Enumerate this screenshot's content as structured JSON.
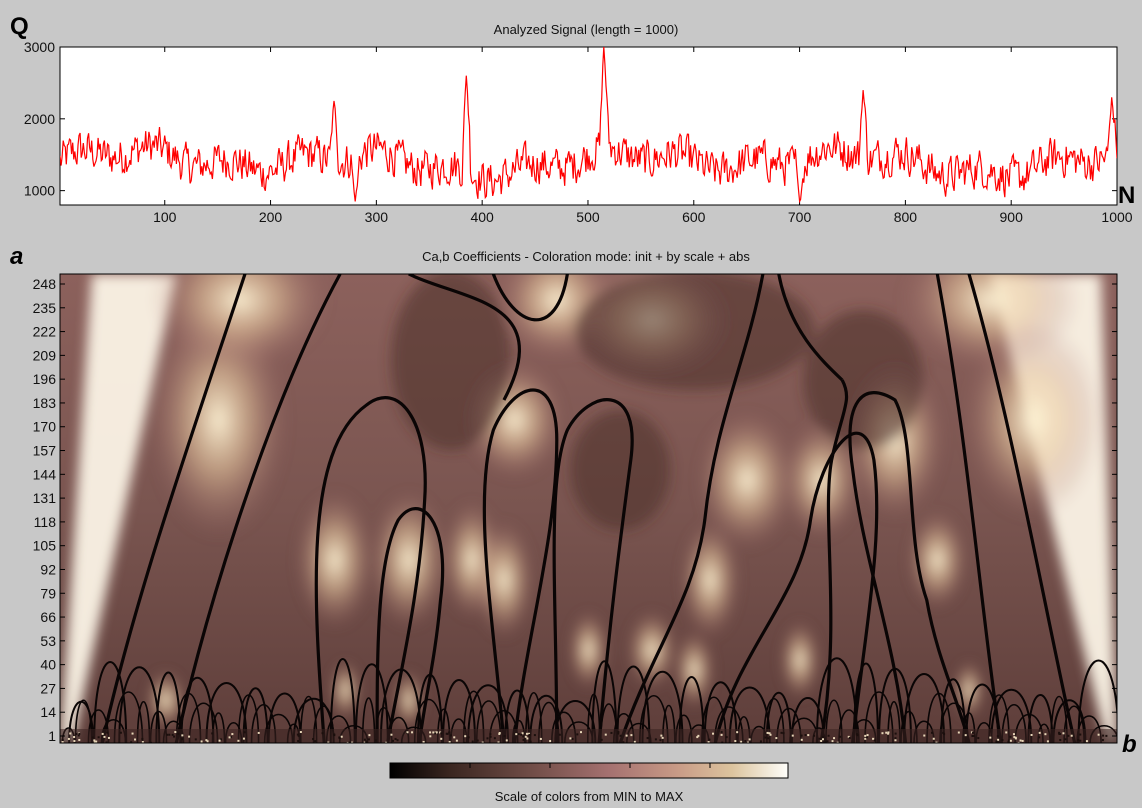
{
  "chart_data": [
    {
      "type": "line",
      "title": "Analyzed Signal  (length = 1000)",
      "ylabel": "Q",
      "xlabel": "N",
      "xlim": [
        1,
        1000
      ],
      "ylim": [
        800,
        3000
      ],
      "x_ticks": [
        100,
        200,
        300,
        400,
        500,
        600,
        700,
        800,
        900,
        1000
      ],
      "y_ticks": [
        1000,
        2000,
        3000
      ],
      "grid": false,
      "series": [
        {
          "color": "#ff0000",
          "length": 1000,
          "baseline": 1400,
          "typical_range": [
            900,
            2100
          ],
          "features": [
            {
              "x": 260,
              "y": 2250
            },
            {
              "x": 280,
              "y": 850
            },
            {
              "x": 385,
              "y": 2600
            },
            {
              "x": 515,
              "y": 3000
            },
            {
              "x": 700,
              "y": 850
            },
            {
              "x": 760,
              "y": 2400
            },
            {
              "x": 995,
              "y": 2300
            }
          ]
        }
      ]
    },
    {
      "type": "heatmap",
      "title": "Ca,b Coefficients - Coloration mode: init + by scale + abs",
      "ylabel": "a",
      "xlabel": "b",
      "xlim": [
        1,
        1000
      ],
      "y_ticks": [
        1,
        14,
        27,
        40,
        53,
        66,
        79,
        92,
        105,
        118,
        131,
        144,
        157,
        170,
        183,
        196,
        209,
        222,
        235,
        248
      ],
      "colormap": [
        "#000000",
        "#3a2620",
        "#6f4c46",
        "#a57170",
        "#c89a86",
        "#dcc49e",
        "#fefefa"
      ]
    }
  ],
  "colorbar": {
    "label": "Scale of colors from MIN to MAX"
  }
}
